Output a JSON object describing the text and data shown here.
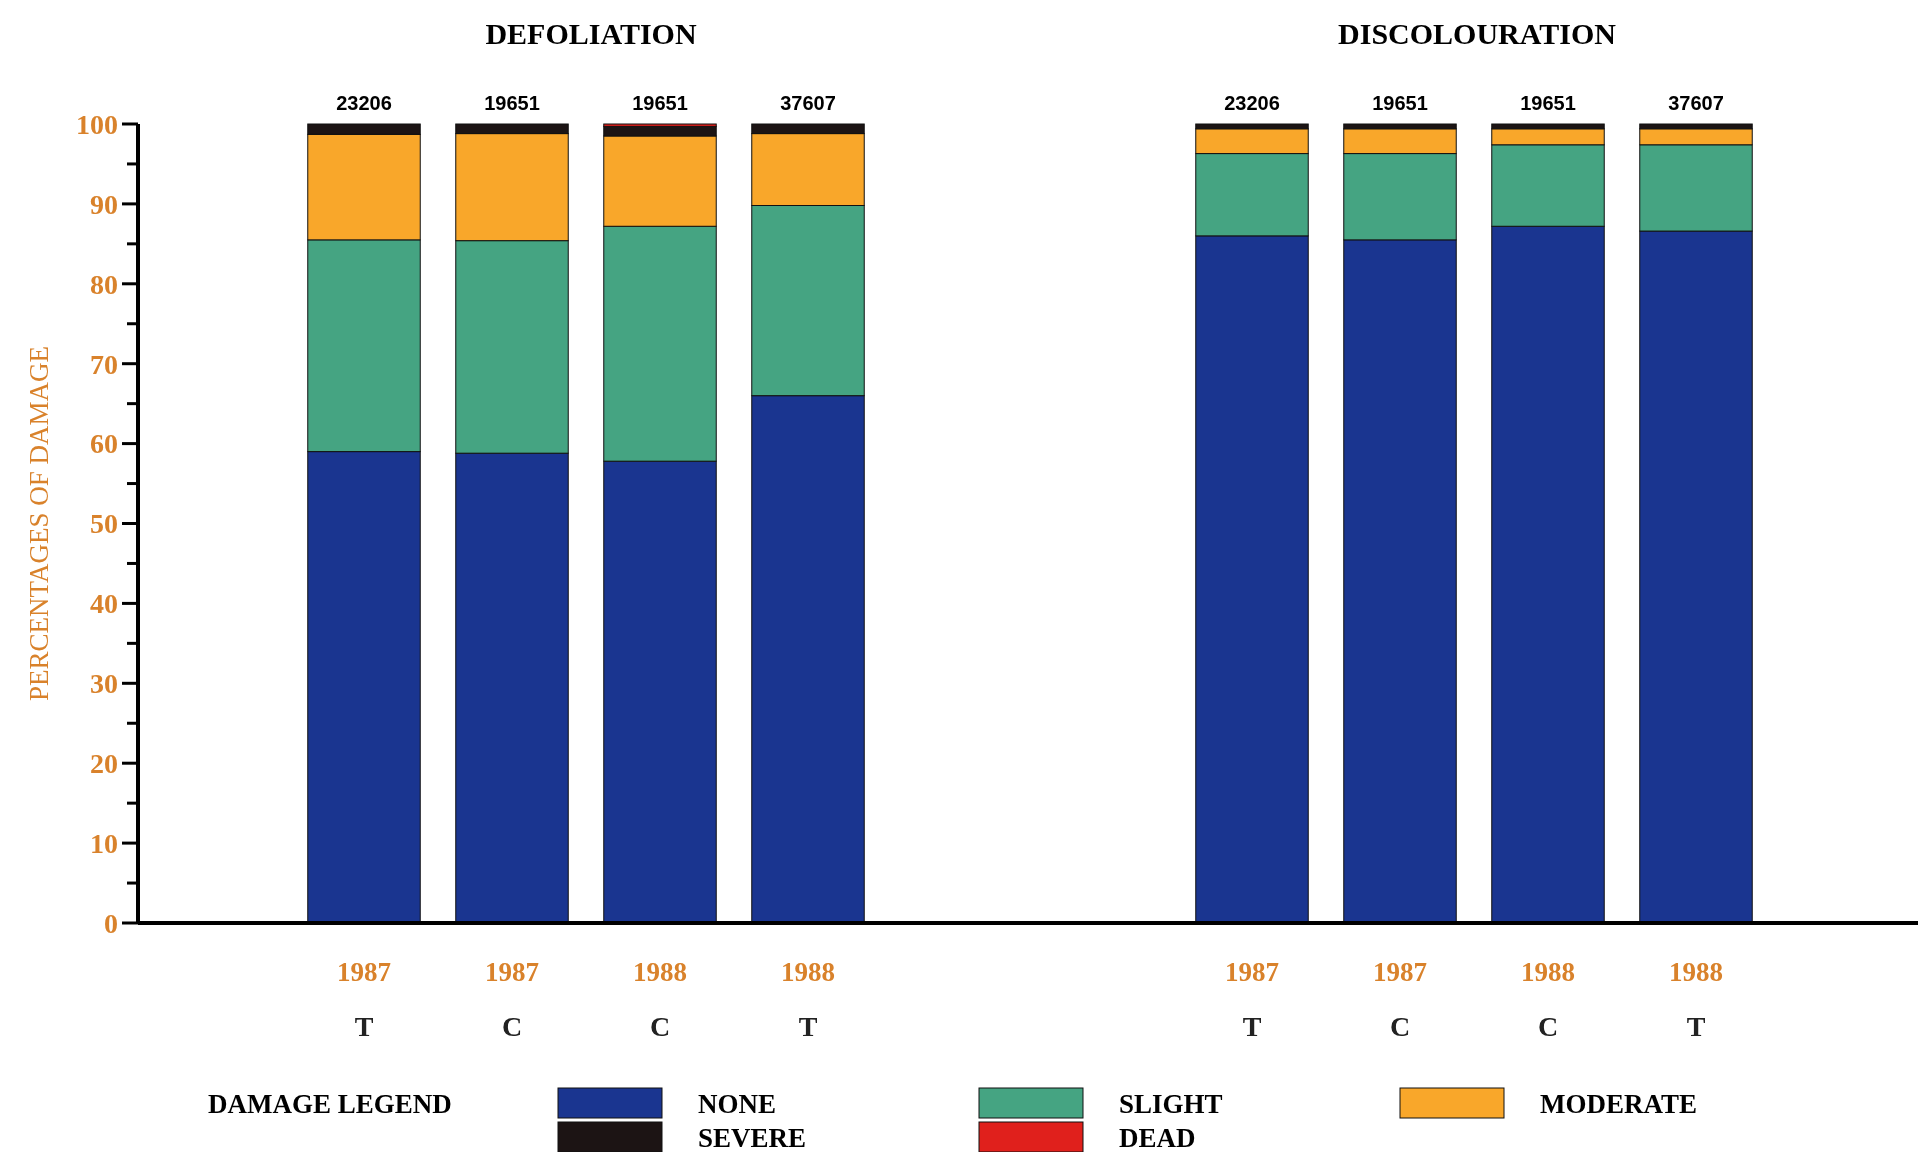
{
  "chart_data": [
    {
      "type": "bar",
      "title": "DEFOLIATION",
      "ylabel": "PERCENTAGES OF DAMAGE",
      "stacked": true,
      "categories": [
        "1987\nT",
        "1987\nC",
        "1988\nC",
        "1988\nT"
      ],
      "ylim": [
        0,
        100
      ],
      "yticks": [
        0,
        10,
        20,
        30,
        40,
        50,
        60,
        70,
        80,
        90,
        100
      ],
      "annotations": [
        {
          "text": "23206",
          "x": "1987\nT",
          "y": 100
        },
        {
          "text": "19651",
          "x": "1987\nC",
          "y": 100
        },
        {
          "text": "19651",
          "x": "1988\nC",
          "y": 100
        },
        {
          "text": "37607",
          "x": "1988\nT",
          "y": 100
        }
      ],
      "legend": "bottom",
      "legend_title": "DAMAGE LEGEND",
      "series": [
        {
          "name": "NONE",
          "color": "#1a3590",
          "values": [
            59.0,
            58.8,
            57.8,
            66.0
          ]
        },
        {
          "name": "SLIGHT",
          "color": "#45a482",
          "values": [
            26.5,
            26.6,
            29.4,
            23.8
          ]
        },
        {
          "name": "MODERATE",
          "color": "#f9a72a",
          "values": [
            13.2,
            13.4,
            11.3,
            9.0
          ]
        },
        {
          "name": "SEVERE",
          "color": "#1c1414",
          "values": [
            1.3,
            1.2,
            1.2,
            1.2
          ]
        },
        {
          "name": "DEAD",
          "color": "#e0201c",
          "values": [
            0,
            0,
            0.3,
            0
          ]
        }
      ]
    },
    {
      "type": "bar",
      "title": "DISCOLOURATION",
      "stacked": true,
      "categories": [
        "1987\nT",
        "1987\nC",
        "1988\nC",
        "1988\nT"
      ],
      "ylim": [
        0,
        100
      ],
      "tick_labels": "x",
      "annotations": [
        {
          "text": "23206",
          "x": "1987\nT",
          "y": 100
        },
        {
          "text": "19651",
          "x": "1987\nC",
          "y": 100
        },
        {
          "text": "19651",
          "x": "1988\nC",
          "y": 100
        },
        {
          "text": "37607",
          "x": "1988\nT",
          "y": 100
        }
      ],
      "series": [
        {
          "color": "#1a3590",
          "values": [
            86.0,
            85.5,
            87.2,
            86.6
          ]
        },
        {
          "color": "#45a482",
          "values": [
            10.3,
            10.8,
            10.2,
            10.8
          ]
        },
        {
          "color": "#f9a72a",
          "values": [
            3.1,
            3.1,
            2.0,
            2.0
          ]
        },
        {
          "color": "#1c1414",
          "values": [
            0.6,
            0.6,
            0.6,
            0.6
          ]
        },
        {
          "color": "#e0201c",
          "values": [
            0,
            0,
            0,
            0
          ]
        }
      ]
    }
  ]
}
